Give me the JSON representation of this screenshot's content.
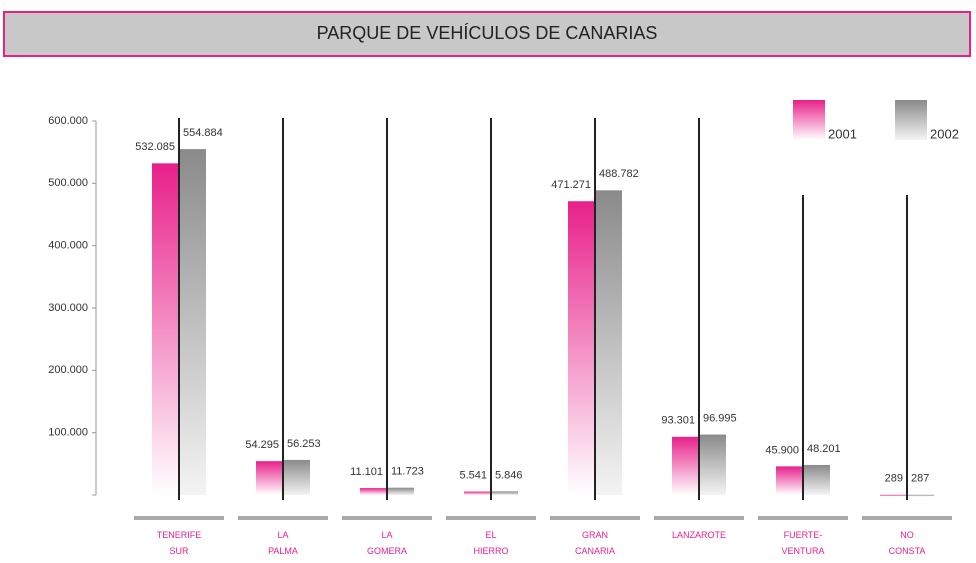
{
  "chart_data": {
    "type": "bar",
    "title": "PARQUE DE VEHÍCULOS DE CANARIAS",
    "categories": [
      "TENERIFE\nSUR",
      "LA\nPALMA",
      "LA\nGOMERA",
      "EL\nHIERRO",
      "GRAN\nCANARIA",
      "LANZAROTE",
      "FUERTE-\nVENTURA",
      "NO\nCONSTA"
    ],
    "series": [
      {
        "name": "2001",
        "color": "#e8208a",
        "values": [
          532085,
          54295,
          11101,
          5541,
          471271,
          93301,
          45900,
          289
        ],
        "value_labels": [
          "532.085",
          "54.295",
          "11.101",
          "5.541",
          "471.271",
          "93.301",
          "45.900",
          "289"
        ]
      },
      {
        "name": "2002",
        "color": "#8a8a8a",
        "values": [
          554884,
          56253,
          11723,
          5846,
          488782,
          96995,
          48201,
          287
        ],
        "value_labels": [
          "554.884",
          "56.253",
          "11.723",
          "5.846",
          "488.782",
          "96.995",
          "48.201",
          "287"
        ]
      }
    ],
    "ylim": [
      0,
      600000
    ],
    "yticks": [
      0,
      {
        "value": 100000,
        "label": "100.000"
      },
      {
        "value": 200000,
        "label": "200.000"
      },
      {
        "value": 300000,
        "label": "300.000"
      },
      {
        "value": 400000,
        "label": "400.000"
      },
      {
        "value": 500000,
        "label": "500.000"
      },
      {
        "value": 600000,
        "label": "600.000"
      }
    ],
    "legend": "top-right"
  }
}
